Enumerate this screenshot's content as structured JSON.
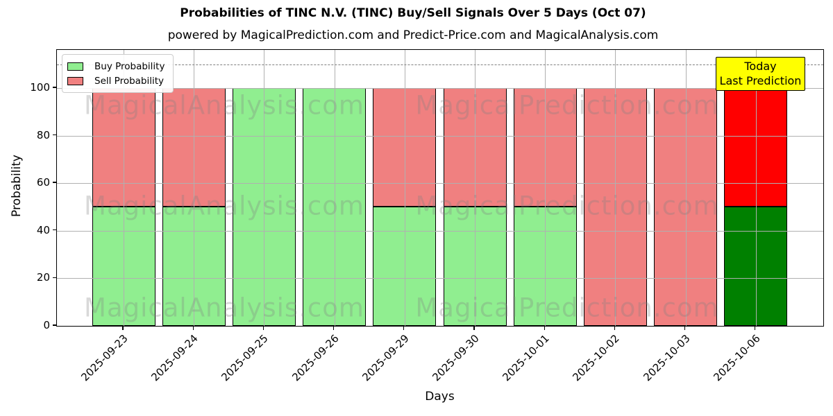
{
  "title": "Probabilities of TINC N.V. (TINC) Buy/Sell Signals Over 5 Days (Oct 07)",
  "subtitle": "powered by MagicalPrediction.com and Predict-Price.com and MagicalAnalysis.com",
  "watermarks": {
    "left_text": "MagicalAnalysis.com",
    "right_text": "MagicalPrediction.com"
  },
  "annotation": {
    "line1": "Today",
    "line2": "Last Prediction",
    "bg_color": "#ffff00"
  },
  "legend": {
    "items": [
      {
        "label": "Buy Probability",
        "color": "#90ee90"
      },
      {
        "label": "Sell Probability",
        "color": "#f08080"
      }
    ],
    "position": "upper left"
  },
  "axes": {
    "ylabel": "Probability",
    "xlabel": "Days",
    "yticks": [
      0,
      20,
      40,
      60,
      80,
      100
    ],
    "ylim": [
      0,
      116
    ],
    "dashed_threshold_y": 110,
    "grid": true
  },
  "colors": {
    "buy_normal": "#90ee90",
    "sell_normal": "#f08080",
    "buy_today": "#008000",
    "sell_today": "#ff0000",
    "bar_edge": "#000000",
    "grid": "#b0b0b0",
    "dashed_line": "#7f7f7f"
  },
  "chart_data": {
    "type": "bar",
    "stacked": true,
    "title": "Probabilities of TINC N.V. (TINC) Buy/Sell Signals Over 5 Days (Oct 07)",
    "xlabel": "Days",
    "ylabel": "Probability",
    "ylim": [
      0,
      116
    ],
    "grid": true,
    "legend_position": "upper left",
    "categories": [
      "2025-09-23",
      "2025-09-24",
      "2025-09-25",
      "2025-09-26",
      "2025-09-29",
      "2025-09-30",
      "2025-10-01",
      "2025-10-02",
      "2025-10-03",
      "2025-10-06"
    ],
    "series": [
      {
        "name": "Buy Probability",
        "values": [
          50,
          50,
          100,
          100,
          50,
          50,
          50,
          0,
          0,
          50
        ],
        "colors": [
          "#90ee90",
          "#90ee90",
          "#90ee90",
          "#90ee90",
          "#90ee90",
          "#90ee90",
          "#90ee90",
          "#90ee90",
          "#90ee90",
          "#008000"
        ]
      },
      {
        "name": "Sell Probability",
        "values": [
          50,
          50,
          0,
          0,
          50,
          50,
          50,
          100,
          100,
          50
        ],
        "colors": [
          "#f08080",
          "#f08080",
          "#f08080",
          "#f08080",
          "#f08080",
          "#f08080",
          "#f08080",
          "#f08080",
          "#f08080",
          "#ff0000"
        ]
      }
    ],
    "annotations": [
      {
        "text": "Today\nLast Prediction",
        "target_category": "2025-10-06"
      }
    ]
  }
}
